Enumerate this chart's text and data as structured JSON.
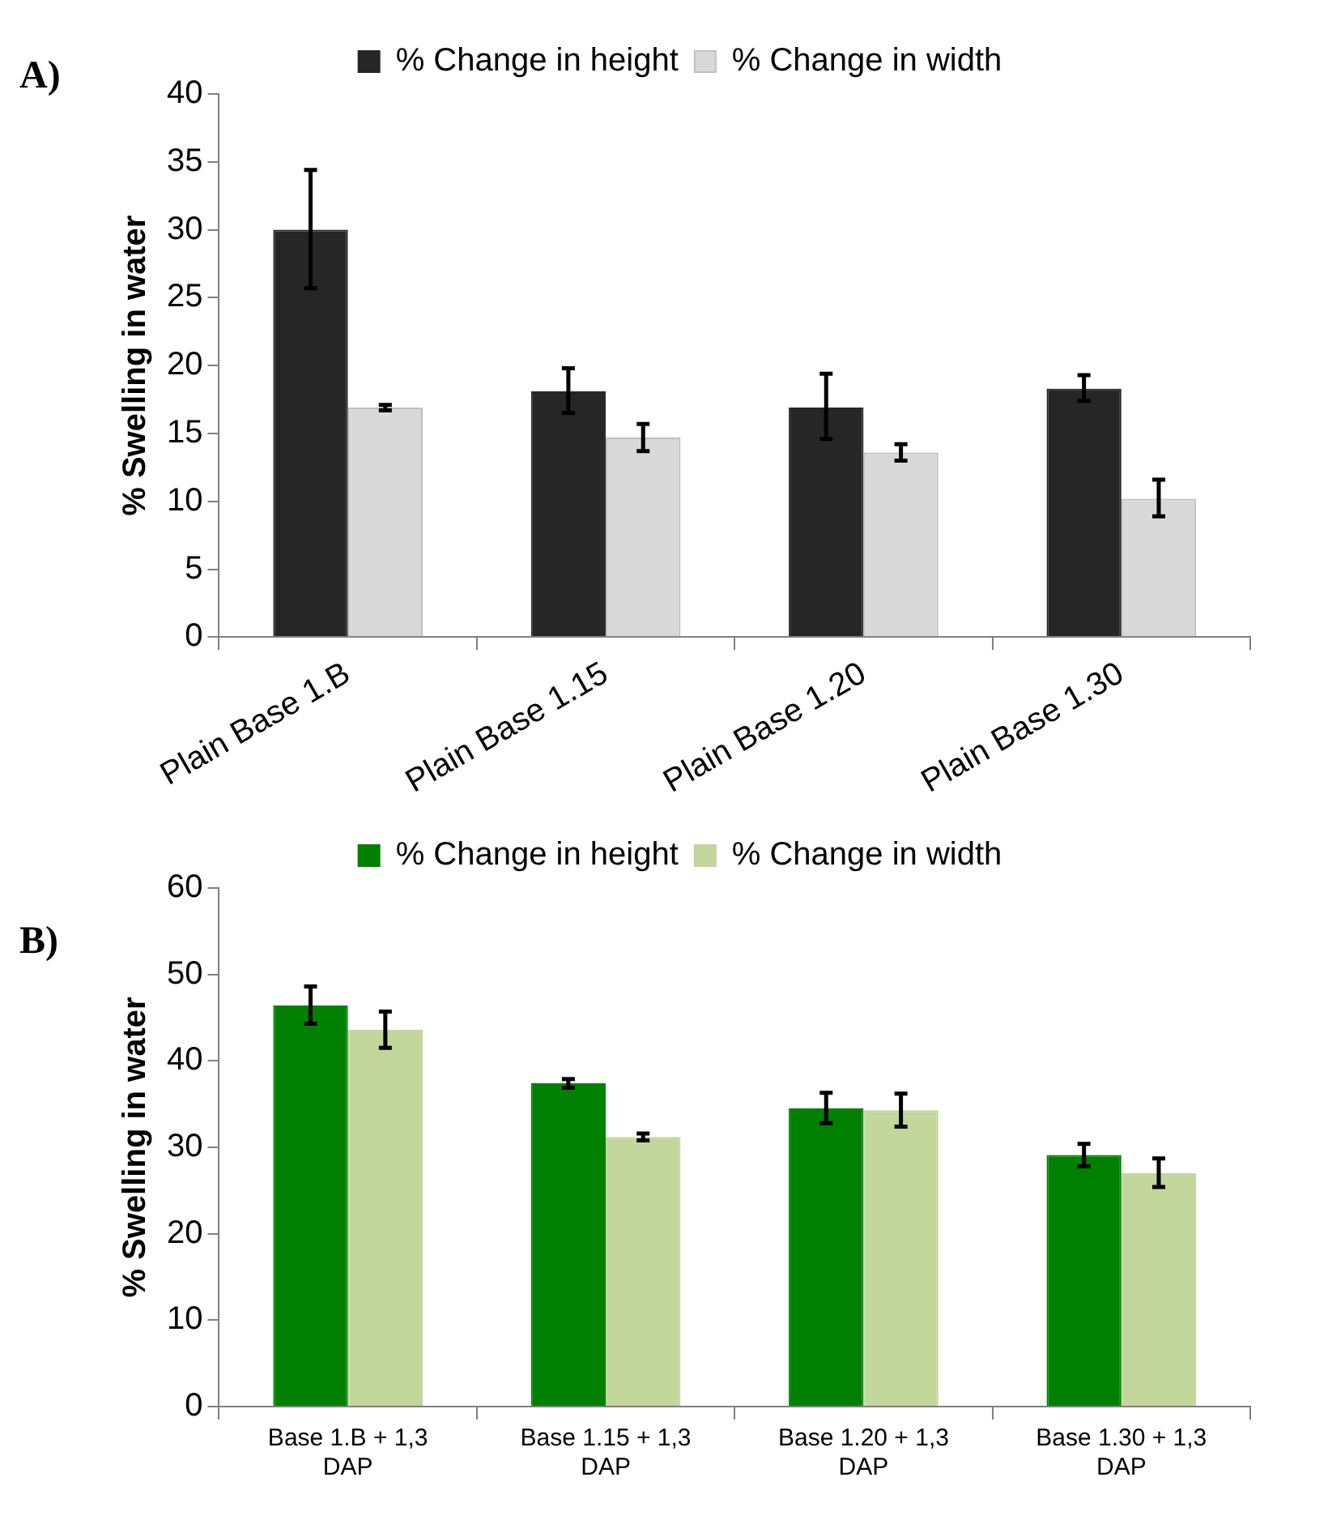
{
  "chart_data": [
    {
      "type": "bar",
      "title": "A)",
      "ylabel": "% Swelling in water",
      "categories": [
        "Plain Base 1.B",
        "Plain Base 1.15",
        "Plain Base 1.20",
        "Plain Base 1.30"
      ],
      "ylim": [
        0,
        40
      ],
      "yticks": [
        0,
        5,
        10,
        15,
        20,
        25,
        30,
        35,
        40
      ],
      "legend": "top",
      "series": [
        {
          "name": "% Change in height",
          "color": "#262626",
          "values": [
            30,
            18.1,
            16.9,
            18.3
          ],
          "errors": [
            [
              25.7,
              34.4
            ],
            [
              16.5,
              19.8
            ],
            [
              14.6,
              19.4
            ],
            [
              17.4,
              19.3
            ]
          ]
        },
        {
          "name": "% Change in width",
          "color": "#d9d9d9",
          "values": [
            16.9,
            14.7,
            13.6,
            10.2
          ],
          "errors": [
            [
              16.7,
              17.1
            ],
            [
              13.7,
              15.7
            ],
            [
              13.0,
              14.2
            ],
            [
              8.9,
              11.6
            ]
          ]
        }
      ]
    },
    {
      "type": "bar",
      "title": "B)",
      "ylabel": "% Swelling in water",
      "categories": [
        "Base 1.B + 1,3 DAP",
        "Base 1.15 + 1,3 DAP",
        "Base 1.20 + 1,3 DAP",
        "Base 1.30 + 1,3 DAP"
      ],
      "ylim": [
        0,
        60
      ],
      "yticks": [
        0,
        10,
        20,
        30,
        40,
        50,
        60
      ],
      "legend": "top",
      "series": [
        {
          "name": "% Change in height",
          "color": "#008000",
          "values": [
            46.4,
            37.4,
            34.5,
            29.1
          ],
          "errors": [
            [
              44.3,
              48.6
            ],
            [
              36.9,
              37.9
            ],
            [
              32.8,
              36.3
            ],
            [
              27.8,
              30.4
            ]
          ]
        },
        {
          "name": "% Change in width",
          "color": "#c3d69b",
          "values": [
            43.6,
            31.2,
            34.3,
            27.0
          ],
          "errors": [
            [
              41.5,
              45.7
            ],
            [
              30.8,
              31.6
            ],
            [
              32.4,
              36.2
            ],
            [
              25.4,
              28.7
            ]
          ]
        }
      ]
    }
  ]
}
